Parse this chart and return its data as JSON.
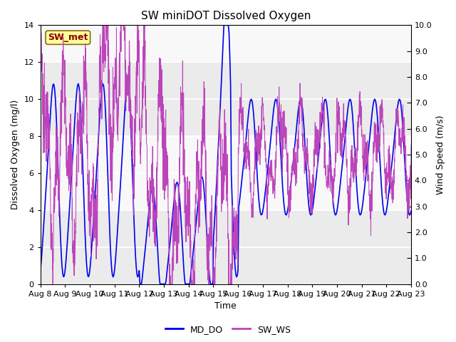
{
  "title": "SW miniDOT Dissolved Oxygen",
  "xlabel": "Time",
  "ylabel_left": "Dissolved Oxygen (mg/l)",
  "ylabel_right": "Wind Speed (m/s)",
  "annotation_text": "SW_met",
  "annotation_color": "#8B0000",
  "annotation_bg": "#FFFF99",
  "annotation_border": "#8B6914",
  "left_ylim": [
    0,
    14
  ],
  "right_ylim": [
    0.0,
    10.0
  ],
  "left_yticks": [
    0,
    2,
    4,
    6,
    8,
    10,
    12,
    14
  ],
  "right_yticks": [
    0.0,
    1.0,
    2.0,
    3.0,
    4.0,
    5.0,
    6.0,
    7.0,
    8.0,
    9.0,
    10.0
  ],
  "xtick_labels": [
    "Aug 8",
    "Aug 9",
    "Aug 10",
    "Aug 11",
    "Aug 12",
    "Aug 13",
    "Aug 14",
    "Aug 15",
    "Aug 16",
    "Aug 17",
    "Aug 18",
    "Aug 19",
    "Aug 20",
    "Aug 21",
    "Aug 22",
    "Aug 23"
  ],
  "line_md_do_color": "#0000EE",
  "line_sw_ws_color": "#BB44BB",
  "legend_md_do": "MD_DO",
  "legend_sw_ws": "SW_WS",
  "fig_bg_color": "#FFFFFF",
  "plot_bg_color": "#FFFFFF",
  "band_dark_color": "#DCDCDC",
  "band_light_color": "#F0F0F0",
  "title_fontsize": 11,
  "axis_label_fontsize": 9,
  "tick_fontsize": 8,
  "legend_fontsize": 9,
  "annotation_fontsize": 9
}
